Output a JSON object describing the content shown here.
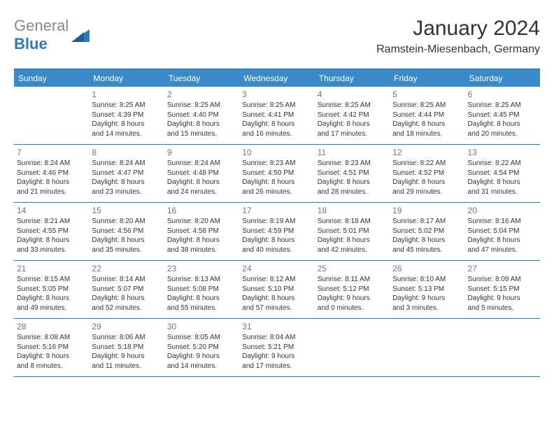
{
  "logo": {
    "part1": "General",
    "part2": "Blue",
    "tri_color": "#2a7abf"
  },
  "title": "January 2024",
  "location": "Ramstein-Miesenbach, Germany",
  "header_bg": "#3a8ac9",
  "border_color": "#2a7abf",
  "day_headers": [
    "Sunday",
    "Monday",
    "Tuesday",
    "Wednesday",
    "Thursday",
    "Friday",
    "Saturday"
  ],
  "weeks": [
    [
      null,
      {
        "n": "1",
        "sr": "Sunrise: 8:25 AM",
        "ss": "Sunset: 4:39 PM",
        "d1": "Daylight: 8 hours",
        "d2": "and 14 minutes."
      },
      {
        "n": "2",
        "sr": "Sunrise: 8:25 AM",
        "ss": "Sunset: 4:40 PM",
        "d1": "Daylight: 8 hours",
        "d2": "and 15 minutes."
      },
      {
        "n": "3",
        "sr": "Sunrise: 8:25 AM",
        "ss": "Sunset: 4:41 PM",
        "d1": "Daylight: 8 hours",
        "d2": "and 16 minutes."
      },
      {
        "n": "4",
        "sr": "Sunrise: 8:25 AM",
        "ss": "Sunset: 4:42 PM",
        "d1": "Daylight: 8 hours",
        "d2": "and 17 minutes."
      },
      {
        "n": "5",
        "sr": "Sunrise: 8:25 AM",
        "ss": "Sunset: 4:44 PM",
        "d1": "Daylight: 8 hours",
        "d2": "and 18 minutes."
      },
      {
        "n": "6",
        "sr": "Sunrise: 8:25 AM",
        "ss": "Sunset: 4:45 PM",
        "d1": "Daylight: 8 hours",
        "d2": "and 20 minutes."
      }
    ],
    [
      {
        "n": "7",
        "sr": "Sunrise: 8:24 AM",
        "ss": "Sunset: 4:46 PM",
        "d1": "Daylight: 8 hours",
        "d2": "and 21 minutes."
      },
      {
        "n": "8",
        "sr": "Sunrise: 8:24 AM",
        "ss": "Sunset: 4:47 PM",
        "d1": "Daylight: 8 hours",
        "d2": "and 23 minutes."
      },
      {
        "n": "9",
        "sr": "Sunrise: 8:24 AM",
        "ss": "Sunset: 4:48 PM",
        "d1": "Daylight: 8 hours",
        "d2": "and 24 minutes."
      },
      {
        "n": "10",
        "sr": "Sunrise: 8:23 AM",
        "ss": "Sunset: 4:50 PM",
        "d1": "Daylight: 8 hours",
        "d2": "and 26 minutes."
      },
      {
        "n": "11",
        "sr": "Sunrise: 8:23 AM",
        "ss": "Sunset: 4:51 PM",
        "d1": "Daylight: 8 hours",
        "d2": "and 28 minutes."
      },
      {
        "n": "12",
        "sr": "Sunrise: 8:22 AM",
        "ss": "Sunset: 4:52 PM",
        "d1": "Daylight: 8 hours",
        "d2": "and 29 minutes."
      },
      {
        "n": "13",
        "sr": "Sunrise: 8:22 AM",
        "ss": "Sunset: 4:54 PM",
        "d1": "Daylight: 8 hours",
        "d2": "and 31 minutes."
      }
    ],
    [
      {
        "n": "14",
        "sr": "Sunrise: 8:21 AM",
        "ss": "Sunset: 4:55 PM",
        "d1": "Daylight: 8 hours",
        "d2": "and 33 minutes."
      },
      {
        "n": "15",
        "sr": "Sunrise: 8:20 AM",
        "ss": "Sunset: 4:56 PM",
        "d1": "Daylight: 8 hours",
        "d2": "and 35 minutes."
      },
      {
        "n": "16",
        "sr": "Sunrise: 8:20 AM",
        "ss": "Sunset: 4:58 PM",
        "d1": "Daylight: 8 hours",
        "d2": "and 38 minutes."
      },
      {
        "n": "17",
        "sr": "Sunrise: 8:19 AM",
        "ss": "Sunset: 4:59 PM",
        "d1": "Daylight: 8 hours",
        "d2": "and 40 minutes."
      },
      {
        "n": "18",
        "sr": "Sunrise: 8:18 AM",
        "ss": "Sunset: 5:01 PM",
        "d1": "Daylight: 8 hours",
        "d2": "and 42 minutes."
      },
      {
        "n": "19",
        "sr": "Sunrise: 8:17 AM",
        "ss": "Sunset: 5:02 PM",
        "d1": "Daylight: 8 hours",
        "d2": "and 45 minutes."
      },
      {
        "n": "20",
        "sr": "Sunrise: 8:16 AM",
        "ss": "Sunset: 5:04 PM",
        "d1": "Daylight: 8 hours",
        "d2": "and 47 minutes."
      }
    ],
    [
      {
        "n": "21",
        "sr": "Sunrise: 8:15 AM",
        "ss": "Sunset: 5:05 PM",
        "d1": "Daylight: 8 hours",
        "d2": "and 49 minutes."
      },
      {
        "n": "22",
        "sr": "Sunrise: 8:14 AM",
        "ss": "Sunset: 5:07 PM",
        "d1": "Daylight: 8 hours",
        "d2": "and 52 minutes."
      },
      {
        "n": "23",
        "sr": "Sunrise: 8:13 AM",
        "ss": "Sunset: 5:08 PM",
        "d1": "Daylight: 8 hours",
        "d2": "and 55 minutes."
      },
      {
        "n": "24",
        "sr": "Sunrise: 8:12 AM",
        "ss": "Sunset: 5:10 PM",
        "d1": "Daylight: 8 hours",
        "d2": "and 57 minutes."
      },
      {
        "n": "25",
        "sr": "Sunrise: 8:11 AM",
        "ss": "Sunset: 5:12 PM",
        "d1": "Daylight: 9 hours",
        "d2": "and 0 minutes."
      },
      {
        "n": "26",
        "sr": "Sunrise: 8:10 AM",
        "ss": "Sunset: 5:13 PM",
        "d1": "Daylight: 9 hours",
        "d2": "and 3 minutes."
      },
      {
        "n": "27",
        "sr": "Sunrise: 8:09 AM",
        "ss": "Sunset: 5:15 PM",
        "d1": "Daylight: 9 hours",
        "d2": "and 5 minutes."
      }
    ],
    [
      {
        "n": "28",
        "sr": "Sunrise: 8:08 AM",
        "ss": "Sunset: 5:16 PM",
        "d1": "Daylight: 9 hours",
        "d2": "and 8 minutes."
      },
      {
        "n": "29",
        "sr": "Sunrise: 8:06 AM",
        "ss": "Sunset: 5:18 PM",
        "d1": "Daylight: 9 hours",
        "d2": "and 11 minutes."
      },
      {
        "n": "30",
        "sr": "Sunrise: 8:05 AM",
        "ss": "Sunset: 5:20 PM",
        "d1": "Daylight: 9 hours",
        "d2": "and 14 minutes."
      },
      {
        "n": "31",
        "sr": "Sunrise: 8:04 AM",
        "ss": "Sunset: 5:21 PM",
        "d1": "Daylight: 9 hours",
        "d2": "and 17 minutes."
      },
      null,
      null,
      null
    ]
  ]
}
